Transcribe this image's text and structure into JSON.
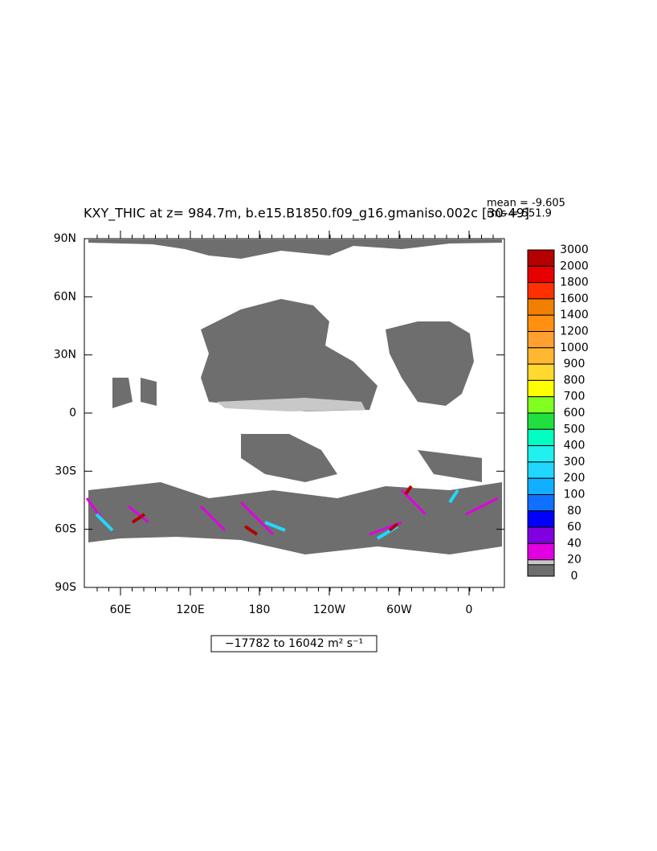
{
  "title": "KXY_THIC at z= 984.7m, b.e15.B1850.f09_g16.gmaniso.002c [30-49]",
  "stats": {
    "mean": "mean = -9.605",
    "rms": "rms = 551.9"
  },
  "lat_labels": [
    "90N",
    "60N",
    "30N",
    "0",
    "30S",
    "60S",
    "90S"
  ],
  "lon_labels": [
    "60E",
    "120E",
    "180",
    "120W",
    "60W",
    "0"
  ],
  "colorbar": {
    "levels": [
      3000,
      2000,
      1800,
      1600,
      1400,
      1200,
      1000,
      900,
      800,
      700,
      600,
      500,
      400,
      300,
      200,
      100,
      80,
      60,
      40,
      20,
      0
    ],
    "colors": [
      "#b40000",
      "#e60000",
      "#ff3000",
      "#f08000",
      "#ff9010",
      "#ffa030",
      "#ffb830",
      "#ffd830",
      "#ffff00",
      "#80ff20",
      "#20e040",
      "#00ffc0",
      "#20f0f0",
      "#20d8ff",
      "#10b0ff",
      "#1070ff",
      "#0000ff",
      "#8000e0",
      "#e000e0",
      "#c8c8c8",
      "#6e6e6e"
    ]
  },
  "range_label": "−17782 to 16042 m² s⁻¹"
}
